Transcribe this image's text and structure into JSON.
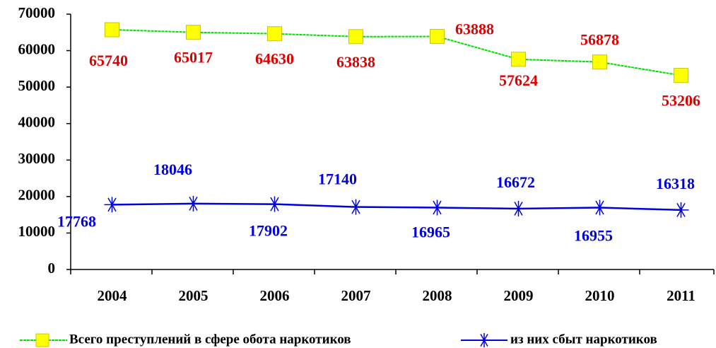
{
  "chart_data": {
    "type": "line",
    "categories": [
      "2004",
      "2005",
      "2006",
      "2007",
      "2008",
      "2009",
      "2010",
      "2011"
    ],
    "series": [
      {
        "name": "Всего преступлений в сфере обота наркотиков",
        "color": "#00e000",
        "marker_color": "#ffff00",
        "label_color": "#e00000",
        "values": [
          65740,
          65017,
          64630,
          63838,
          63888,
          57624,
          56878,
          53206
        ]
      },
      {
        "name": "из них сбыт наркотиков",
        "color": "#0000e0",
        "marker_color": "#0000e0",
        "label_color": "#0000e0",
        "values": [
          17768,
          18046,
          17902,
          17140,
          16965,
          16672,
          16955,
          16318
        ]
      }
    ],
    "ylim": [
      0,
      70000
    ],
    "yticks": [
      0,
      10000,
      20000,
      30000,
      40000,
      50000,
      60000,
      70000
    ]
  }
}
